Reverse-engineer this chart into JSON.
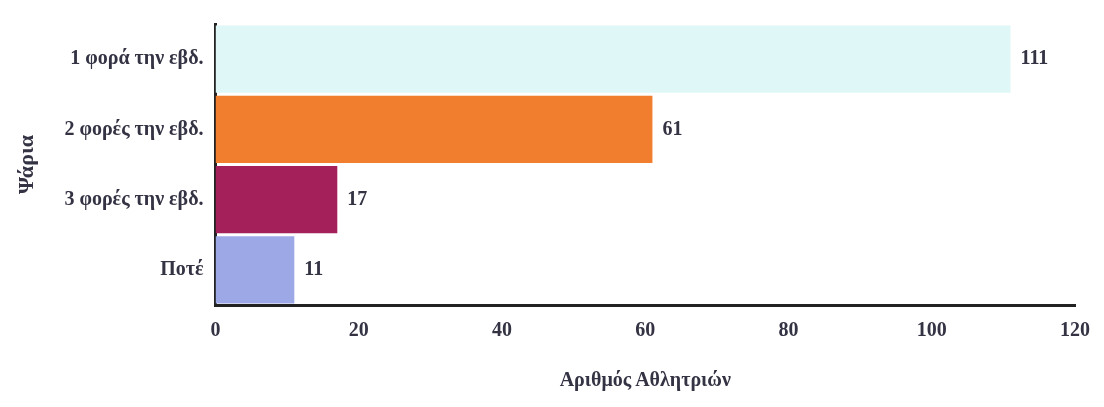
{
  "chart_data": {
    "type": "bar",
    "orientation": "horizontal",
    "xlabel": "Αριθμός Αθλητριών",
    "ylabel": "Ψάρια",
    "categories": [
      "1 φορά την εβδ.",
      "2 φορές την εβδ.",
      "3 φορές την εβδ.",
      "Ποτέ"
    ],
    "values": [
      111,
      61,
      17,
      11
    ],
    "colors": [
      "#dff7f7",
      "#f07e2e",
      "#a3205a",
      "#9da8e6"
    ],
    "xlim": [
      0,
      120
    ],
    "xticks": [
      0,
      20,
      40,
      60,
      80,
      100,
      120
    ],
    "data_labels": true,
    "grid": false,
    "legend": false
  }
}
